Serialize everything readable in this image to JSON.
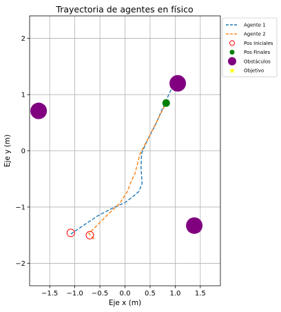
{
  "chart_data": {
    "type": "line",
    "title": "Trayectoria de agentes en físico",
    "xlabel": "Eje x (m)",
    "ylabel": "Eje y (m)",
    "xlim": [
      -1.9,
      1.9
    ],
    "ylim": [
      -2.4,
      2.4
    ],
    "xticks": [
      -1.5,
      -1.0,
      -0.5,
      0.0,
      0.5,
      1.0,
      1.5
    ],
    "xtick_labels": [
      "−1.5",
      "−1.0",
      "−0.5",
      "0.0",
      "0.5",
      "1.0",
      "1.5"
    ],
    "yticks": [
      -2,
      -1,
      0,
      1,
      2
    ],
    "ytick_labels": [
      "−2",
      "−1",
      "0",
      "1",
      "2"
    ],
    "grid": true,
    "legend_position": "outside-right-top",
    "series": [
      {
        "name": "Agente 1",
        "kind": "line",
        "style": "dashed",
        "color": "#1f77b4",
        "x": [
          -1.08,
          -0.85,
          -0.55,
          -0.25,
          0.0,
          0.15,
          0.28,
          0.34,
          0.32,
          0.33,
          0.45,
          0.6,
          0.8,
          0.95,
          1.0
        ],
        "y": [
          -1.48,
          -1.34,
          -1.16,
          -1.02,
          -0.92,
          -0.82,
          -0.72,
          -0.58,
          -0.3,
          -0.05,
          0.2,
          0.45,
          0.86,
          1.15,
          1.22
        ]
      },
      {
        "name": "Agente 2",
        "kind": "line",
        "style": "dashed",
        "color": "#ff7f0e",
        "x": [
          -0.62,
          -0.72,
          -0.55,
          -0.35,
          -0.1,
          0.05,
          0.12,
          0.2,
          0.3,
          0.45,
          0.62,
          0.82
        ],
        "y": [
          -1.57,
          -1.47,
          -1.32,
          -1.14,
          -0.93,
          -0.72,
          -0.55,
          -0.4,
          -0.05,
          0.2,
          0.5,
          0.85
        ]
      },
      {
        "name": "Pos Iniciales",
        "kind": "scatter",
        "marker": "open-circle",
        "color": "#ff0000",
        "x": [
          -1.08,
          -0.7
        ],
        "y": [
          -1.46,
          -1.5
        ]
      },
      {
        "name": "Pos Finales",
        "kind": "scatter",
        "marker": "filled-circle",
        "color": "#008000",
        "x": [
          0.82,
          1.0
        ],
        "y": [
          0.85,
          1.22
        ]
      },
      {
        "name": "Obstáculos",
        "kind": "scatter",
        "marker": "filled-circle-large",
        "color": "#800080",
        "x": [
          -1.72,
          1.05,
          1.38
        ],
        "y": [
          0.71,
          1.2,
          -1.33
        ]
      },
      {
        "name": "Objetivo",
        "kind": "scatter",
        "marker": "star",
        "color": "#ffff00",
        "x": [],
        "y": []
      }
    ]
  }
}
